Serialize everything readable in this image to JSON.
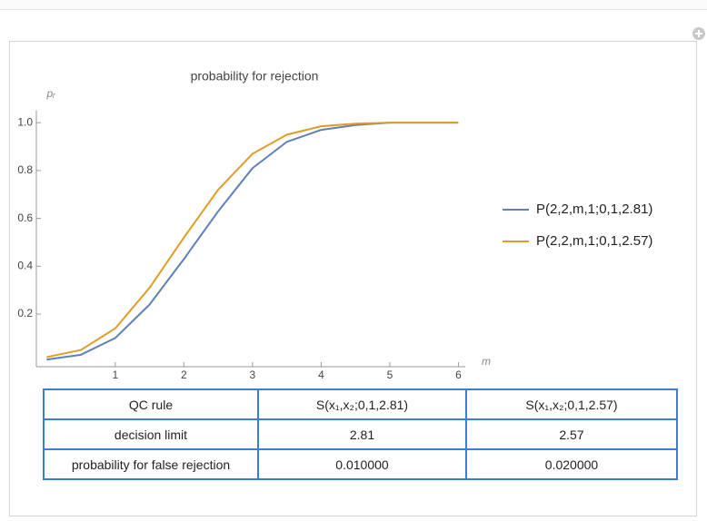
{
  "chart_data": {
    "type": "line",
    "title": "probability for rejection",
    "x_label": "m",
    "y_label": "pᵣ",
    "x": [
      0,
      0.5,
      1,
      1.5,
      2,
      2.5,
      3,
      3.5,
      4,
      4.5,
      5,
      5.5,
      6
    ],
    "series": [
      {
        "name": "P(2,2,m,1;0,1,2.81)",
        "color": "#5e81b5",
        "values": [
          0.01,
          0.03,
          0.1,
          0.24,
          0.43,
          0.63,
          0.81,
          0.92,
          0.97,
          0.99,
          1.0,
          1.0,
          1.0
        ]
      },
      {
        "name": "P(2,2,m,1;0,1,2.57)",
        "color": "#e19c24",
        "values": [
          0.02,
          0.05,
          0.14,
          0.31,
          0.52,
          0.72,
          0.87,
          0.95,
          0.985,
          0.996,
          1.0,
          1.0,
          1.0
        ]
      }
    ],
    "xlim": [
      -0.15,
      6.1
    ],
    "ylim": [
      -0.02,
      1.05
    ],
    "xticks": [
      1,
      2,
      3,
      4,
      5,
      6
    ],
    "yticks": [
      0.2,
      0.4,
      0.6,
      0.8,
      {
        "value": 1,
        "label": "1.0"
      }
    ],
    "legend": "right"
  },
  "table": {
    "rows": [
      [
        "QC rule",
        "S(x₁,x₂;0,1,2.81)",
        "S(x₁,x₂;0,1,2.57)"
      ],
      [
        "decision limit",
        "2.81",
        "2.57"
      ],
      [
        "probability for false rejection",
        "0.010000",
        "0.020000"
      ]
    ]
  }
}
